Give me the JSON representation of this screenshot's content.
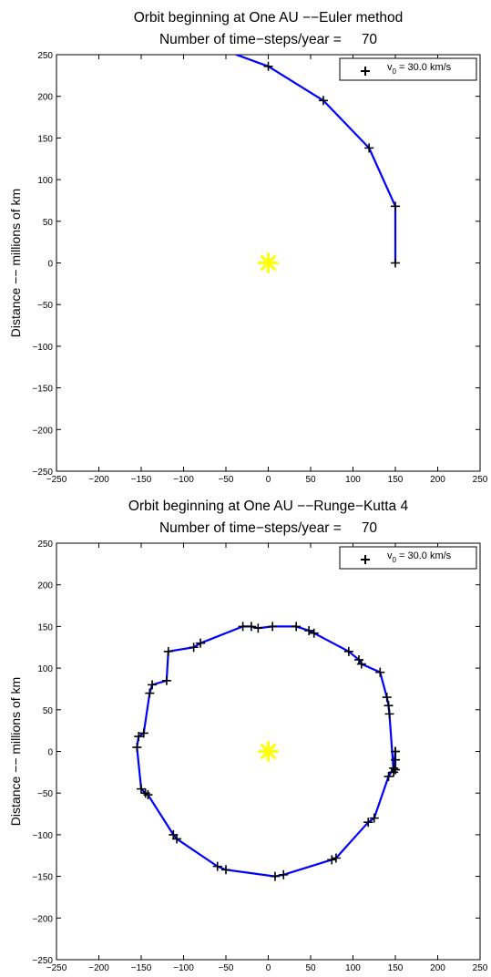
{
  "chart_data": [
    {
      "type": "line",
      "title": "Orbit beginning at One AU −−Euler method",
      "subtitle_label": "Number of time−steps/year =",
      "subtitle_value": "70",
      "xlabel": "",
      "ylabel": "Distance −− millions of km",
      "xlim": [
        -250,
        250
      ],
      "ylim": [
        -250,
        250
      ],
      "xticks": [
        "−250",
        "−200",
        "−150",
        "−100",
        "−50",
        "0",
        "50",
        "100",
        "150",
        "200",
        "250"
      ],
      "yticks": [
        "−250",
        "−200",
        "−150",
        "−100",
        "−50",
        "0",
        "50",
        "100",
        "150",
        "200",
        "250"
      ],
      "legend": {
        "position": "top-right",
        "marker": "+",
        "label_main": "v",
        "label_sub": "0",
        "label_rest": " =    30.0 km/s"
      },
      "sun": {
        "x": 0,
        "y": 0,
        "color": "#ffff00"
      },
      "line_color": "#0000ff",
      "series": [
        {
          "x": [
            150,
            150,
            119,
            65,
            0,
            -70
          ],
          "y": [
            0,
            68,
            138,
            195,
            236,
            262
          ]
        }
      ]
    },
    {
      "type": "line",
      "title": "Orbit beginning at One AU −−Runge−Kutta 4",
      "subtitle_label": "Number of time−steps/year =",
      "subtitle_value": "70",
      "xlabel": "",
      "ylabel": "Distance −− millions of km",
      "xlim": [
        -250,
        250
      ],
      "ylim": [
        -250,
        250
      ],
      "xticks": [
        "−250",
        "−200",
        "−150",
        "−100",
        "−50",
        "0",
        "50",
        "100",
        "150",
        "200",
        "250"
      ],
      "yticks": [
        "−250",
        "−200",
        "−150",
        "−100",
        "−50",
        "0",
        "50",
        "100",
        "150",
        "200",
        "250"
      ],
      "legend": {
        "position": "top-right",
        "marker": "+",
        "label_main": "v",
        "label_sub": "0",
        "label_rest": " =    30.0 km/s"
      },
      "sun": {
        "x": 0,
        "y": 0,
        "color": "#ffff00"
      },
      "line_color": "#0000ff",
      "series": [
        {
          "x": [
            150,
            150,
            150,
            148,
            143,
            142,
            140,
            132,
            110,
            107,
            95,
            54,
            48,
            33,
            5,
            -12,
            -20,
            -30,
            -80,
            -88,
            -118,
            -120,
            -137,
            -140,
            -147,
            -153,
            -155,
            -150,
            -145,
            -142,
            -112,
            -108,
            -60,
            -50,
            8,
            18,
            75,
            80,
            118,
            125,
            142,
            148,
            150
          ],
          "y": [
            0,
            -10,
            -22,
            -25,
            45,
            55,
            65,
            95,
            105,
            110,
            120,
            142,
            145,
            150,
            150,
            148,
            150,
            150,
            130,
            125,
            120,
            85,
            80,
            70,
            22,
            18,
            5,
            -45,
            -50,
            -52,
            -100,
            -105,
            -138,
            -142,
            -150,
            -148,
            -130,
            -128,
            -85,
            -80,
            -30,
            -20,
            0
          ]
        }
      ]
    }
  ]
}
